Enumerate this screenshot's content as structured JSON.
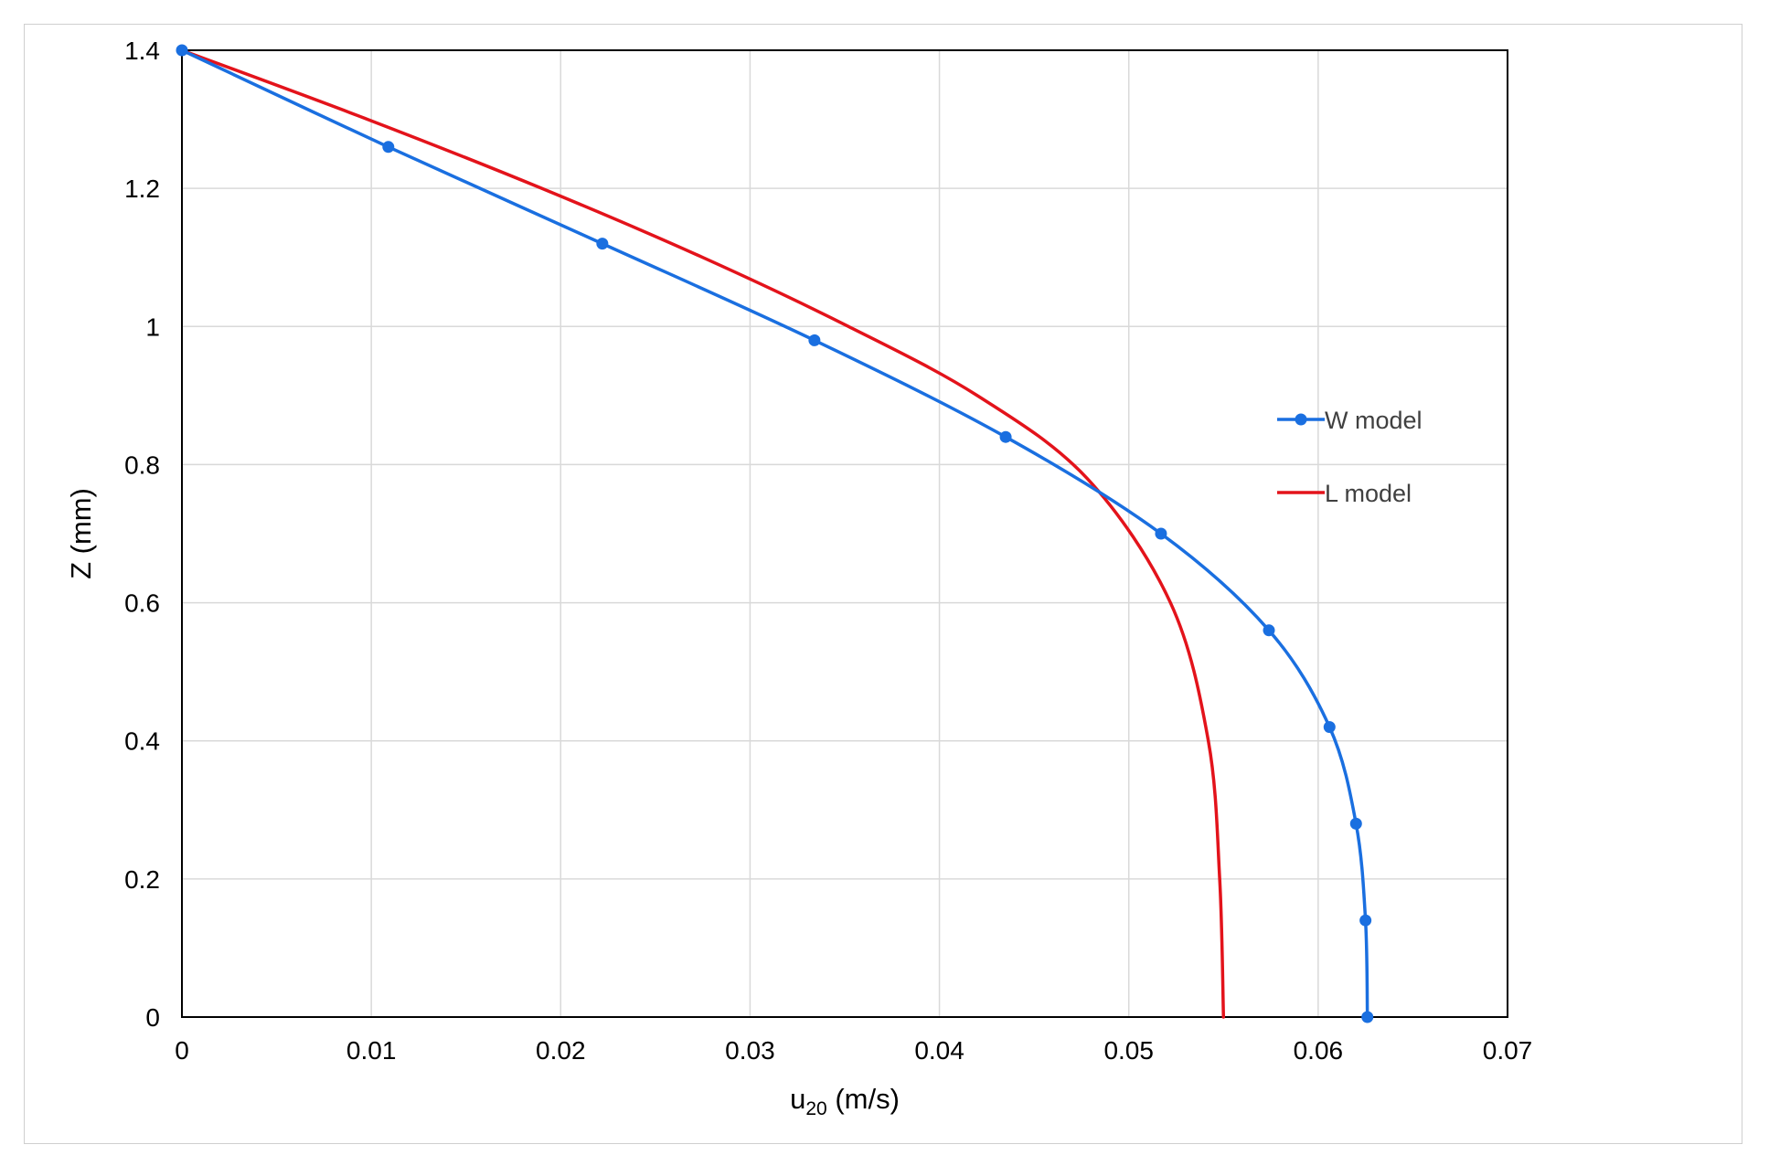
{
  "chart_data": {
    "type": "line",
    "title": "",
    "xlabel": "u",
    "xlabel_sub": "20",
    "xlabel_unit": " (m/s)",
    "ylabel": "Z (mm)",
    "xlim": [
      0,
      0.07
    ],
    "ylim": [
      0,
      1.4
    ],
    "xticks": [
      0,
      0.01,
      0.02,
      0.03,
      0.04,
      0.05,
      0.06,
      0.07
    ],
    "xtick_labels": [
      "0",
      "0.01",
      "0.02",
      "0.03",
      "0.04",
      "0.05",
      "0.06",
      "0.07"
    ],
    "yticks": [
      0,
      0.2,
      0.4,
      0.6,
      0.8,
      1.0,
      1.2,
      1.4
    ],
    "ytick_labels": [
      "0",
      "0.2",
      "0.4",
      "0.6",
      "0.8",
      "1",
      "1.2",
      "1.4"
    ],
    "grid": true,
    "legend_position": "right",
    "series": [
      {
        "name": "W model",
        "color": "#1a6fe0",
        "markers": true,
        "x": [
          0,
          0.0109,
          0.0222,
          0.0334,
          0.0435,
          0.0517,
          0.0574,
          0.0606,
          0.062,
          0.0625,
          0.0626
        ],
        "y": [
          1.4,
          1.26,
          1.12,
          0.98,
          0.84,
          0.7,
          0.56,
          0.42,
          0.28,
          0.14,
          0.0
        ]
      },
      {
        "name": "L model",
        "color": "#e3131b",
        "markers": false,
        "x": [
          0,
          0.0098,
          0.019,
          0.0275,
          0.0352,
          0.042,
          0.0478,
          0.0522,
          0.0542,
          0.0548,
          0.055
        ],
        "y": [
          1.4,
          1.3,
          1.2,
          1.1,
          1.0,
          0.9,
          0.78,
          0.6,
          0.4,
          0.2,
          0.0
        ]
      }
    ]
  }
}
